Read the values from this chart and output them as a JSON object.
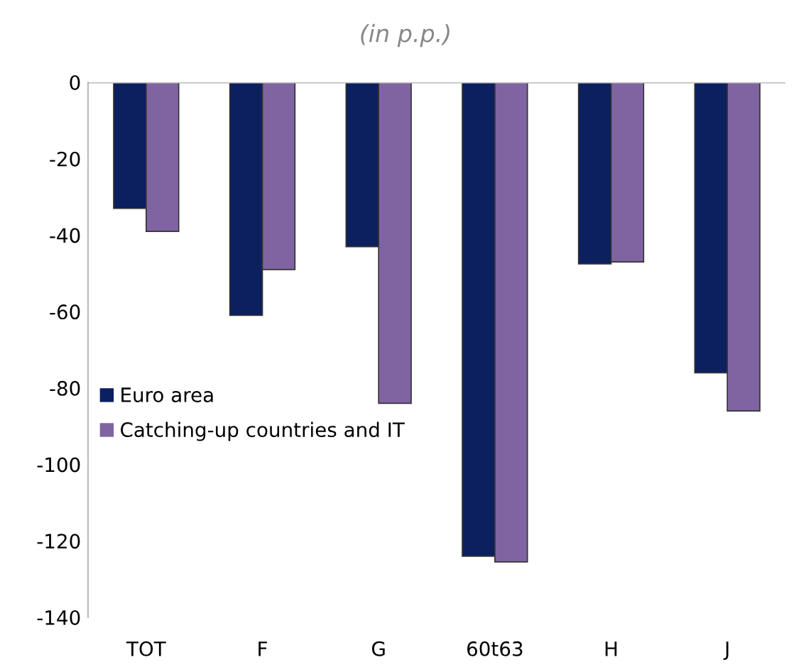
{
  "chart_data": {
    "type": "bar",
    "subtitle": "(in p.p.)",
    "categories": [
      "TOT",
      "F",
      "G",
      "60t63",
      "H",
      "J"
    ],
    "series": [
      {
        "name": "Euro area",
        "color": "#0c1f5e",
        "values": [
          -33,
          -61,
          -43,
          -124,
          -47.5,
          -76
        ]
      },
      {
        "name": "Catching-up countries and IT",
        "color": "#8064a2",
        "values": [
          -39,
          -49,
          -84,
          -125.5,
          -47,
          -86
        ]
      }
    ],
    "ylim": [
      -140,
      0
    ],
    "yticks": [
      -140,
      -120,
      -100,
      -80,
      -60,
      -40,
      -20,
      0
    ],
    "grid": false,
    "legend": "left"
  }
}
